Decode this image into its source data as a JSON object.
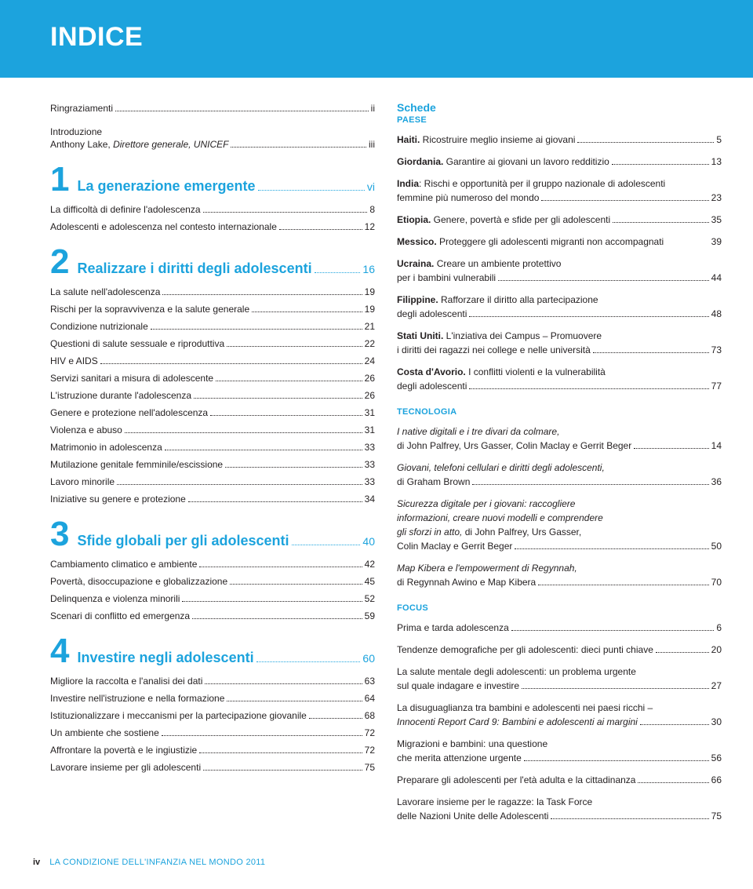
{
  "header": {
    "title": "INDICE"
  },
  "left": {
    "ringraziamenti": {
      "label": "Ringraziamenti",
      "page": "ii"
    },
    "introduzione": {
      "title": "Introduzione",
      "sub_prefix": "Anthony Lake, ",
      "sub_italic": "Direttore generale, UNICEF",
      "page": "iii"
    },
    "chapters": [
      {
        "num": "1",
        "title": "La generazione emergente",
        "page": "vi",
        "items": [
          {
            "label": "La difficoltà di definire l'adolescenza",
            "page": "8"
          },
          {
            "label": "Adolescenti e adolescenza nel contesto internazionale",
            "page": "12"
          }
        ]
      },
      {
        "num": "2",
        "title": "Realizzare i diritti degli adolescenti",
        "page": "16",
        "items": [
          {
            "label": "La salute nell'adolescenza",
            "page": "19"
          },
          {
            "label": "Rischi per la sopravvivenza e la salute generale",
            "page": "19"
          },
          {
            "label": "Condizione nutrizionale",
            "page": "21"
          },
          {
            "label": "Questioni di salute sessuale e riproduttiva",
            "page": "22"
          },
          {
            "label": "HIV e AIDS",
            "page": "24"
          },
          {
            "label": "Servizi sanitari a misura di adolescente",
            "page": "26"
          },
          {
            "label": "L'istruzione durante l'adolescenza",
            "page": "26"
          },
          {
            "label": "Genere e protezione nell'adolescenza",
            "page": "31"
          },
          {
            "label": "Violenza e abuso",
            "page": "31"
          },
          {
            "label": "Matrimonio in adolescenza",
            "page": "33"
          },
          {
            "label": "Mutilazione genitale femminile/escissione",
            "page": "33"
          },
          {
            "label": "Lavoro minorile",
            "page": "33"
          },
          {
            "label": "Iniziative su genere e protezione",
            "page": "34"
          }
        ]
      },
      {
        "num": "3",
        "title": "Sfide globali per gli adolescenti",
        "page": "40",
        "items": [
          {
            "label": "Cambiamento climatico e ambiente",
            "page": "42"
          },
          {
            "label": "Povertà, disoccupazione e globalizzazione",
            "page": "45"
          },
          {
            "label": "Delinquenza e violenza minorili",
            "page": "52"
          },
          {
            "label": "Scenari di conflitto ed emergenza",
            "page": "59"
          }
        ]
      },
      {
        "num": "4",
        "title": "Investire negli adolescenti",
        "page": "60",
        "items": [
          {
            "label": "Migliore la raccolta e l'analisi dei dati",
            "page": "63"
          },
          {
            "label": "Investire nell'istruzione e nella formazione",
            "page": "64"
          },
          {
            "label": "Istituzionalizzare i meccanismi per la partecipazione giovanile",
            "page": "68"
          },
          {
            "label": "Un ambiente che sostiene",
            "page": "72"
          },
          {
            "label": "Affrontare la povertà e le ingiustizie",
            "page": "72"
          },
          {
            "label": "Lavorare insieme per gli adolescenti",
            "page": "75"
          }
        ]
      }
    ]
  },
  "right": {
    "schede_title": "Schede",
    "paese_sub": "PAESE",
    "paese": [
      {
        "bold": "Haiti.",
        "rest": " Ricostruire meglio insieme ai giovani",
        "page": "5"
      },
      {
        "bold": "Giordania.",
        "rest": " Garantire ai giovani un lavoro redditizio",
        "page": "13"
      },
      {
        "multi": true,
        "line1_bold": "India",
        "line1_rest": ": Rischi e opportunità per il gruppo nazionale di adolescenti",
        "line2": "femmine più numeroso del mondo",
        "page": "23"
      },
      {
        "bold": "Etiopia.",
        "rest": " Genere, povertà e sfide per gli adolescenti",
        "page": "35"
      },
      {
        "bold": "Messico.",
        "rest": " Proteggere gli adolescenti migranti non accompagnati",
        "page": "39",
        "nodots": true
      },
      {
        "multi": true,
        "line1_bold": "Ucraina.",
        "line1_rest": " Creare un ambiente protettivo",
        "line2": "per i bambini vulnerabili",
        "page": "44"
      },
      {
        "multi": true,
        "line1_bold": "Filippine.",
        "line1_rest": " Rafforzare il diritto alla partecipazione",
        "line2": "degli adolescenti",
        "page": "48"
      },
      {
        "multi": true,
        "line1_bold": "Stati Uniti.",
        "line1_rest": " L'inziativa dei Campus – Promuovere",
        "line2": "i diritti dei ragazzi nei college e nelle università",
        "page": "73"
      },
      {
        "multi": true,
        "line1_bold": "Costa d'Avorio.",
        "line1_rest": " I conflitti violenti e la vulnerabilità",
        "line2": "degli adolescenti",
        "page": "77"
      }
    ],
    "tecnologia_sub": "TECNOLOGIA",
    "tecnologia": [
      {
        "multi": true,
        "line1_italic": "I native digitali e i tre divari da colmare,",
        "line2": "di John Palfrey, Urs Gasser, Colin Maclay e Gerrit Beger",
        "page": "14"
      },
      {
        "multi": true,
        "line1_italic": "Giovani, telefoni cellulari e diritti degli adolescenti,",
        "line2": "di Graham Brown",
        "page": "36"
      },
      {
        "multi4": true,
        "l1": "Sicurezza digitale per i giovani: raccogliere",
        "l2": "informazioni, creare nuovi modelli e comprendere",
        "l3_italic": "gli sforzi in atto,",
        "l3_rest": " di John Palfrey, Urs Gasser,",
        "l4": "Colin Maclay e Gerrit Beger",
        "page": "50"
      },
      {
        "multi": true,
        "line1_italic": "Map Kibera e l'empowerment di Regynnah,",
        "line2": "di Regynnah Awino e Map Kibera",
        "page": "70"
      }
    ],
    "focus_sub": "FOCUS",
    "focus": [
      {
        "label": "Prima e tarda adolescenza",
        "page": "6"
      },
      {
        "label": "Tendenze demografiche per gli adolescenti: dieci punti chiave",
        "page": "20"
      },
      {
        "multi": true,
        "line1": "La salute mentale degli adolescenti: un problema urgente",
        "line2": "sul quale indagare e investire",
        "page": "27"
      },
      {
        "multi": true,
        "line1": "La disuguaglianza tra bambini e adolescenti nei paesi ricchi –",
        "line2_italic": "Innocenti Report Card 9: Bambini e adolescenti ai margini",
        "page": "30"
      },
      {
        "multi": true,
        "line1": "Migrazioni e bambini: una questione",
        "line2": "che merita attenzione urgente",
        "page": "56"
      },
      {
        "label": "Preparare gli adolescenti per l'età adulta e la cittadinanza",
        "page": "66"
      },
      {
        "multi": true,
        "line1": "Lavorare insieme per le ragazze: la Task Force",
        "line2": "delle Nazioni Unite delle Adolescenti",
        "page": "75"
      }
    ]
  },
  "footer": {
    "pg": "iv",
    "text": "LA CONDIZIONE DELL'INFANZIA NEL MONDO 2011"
  }
}
